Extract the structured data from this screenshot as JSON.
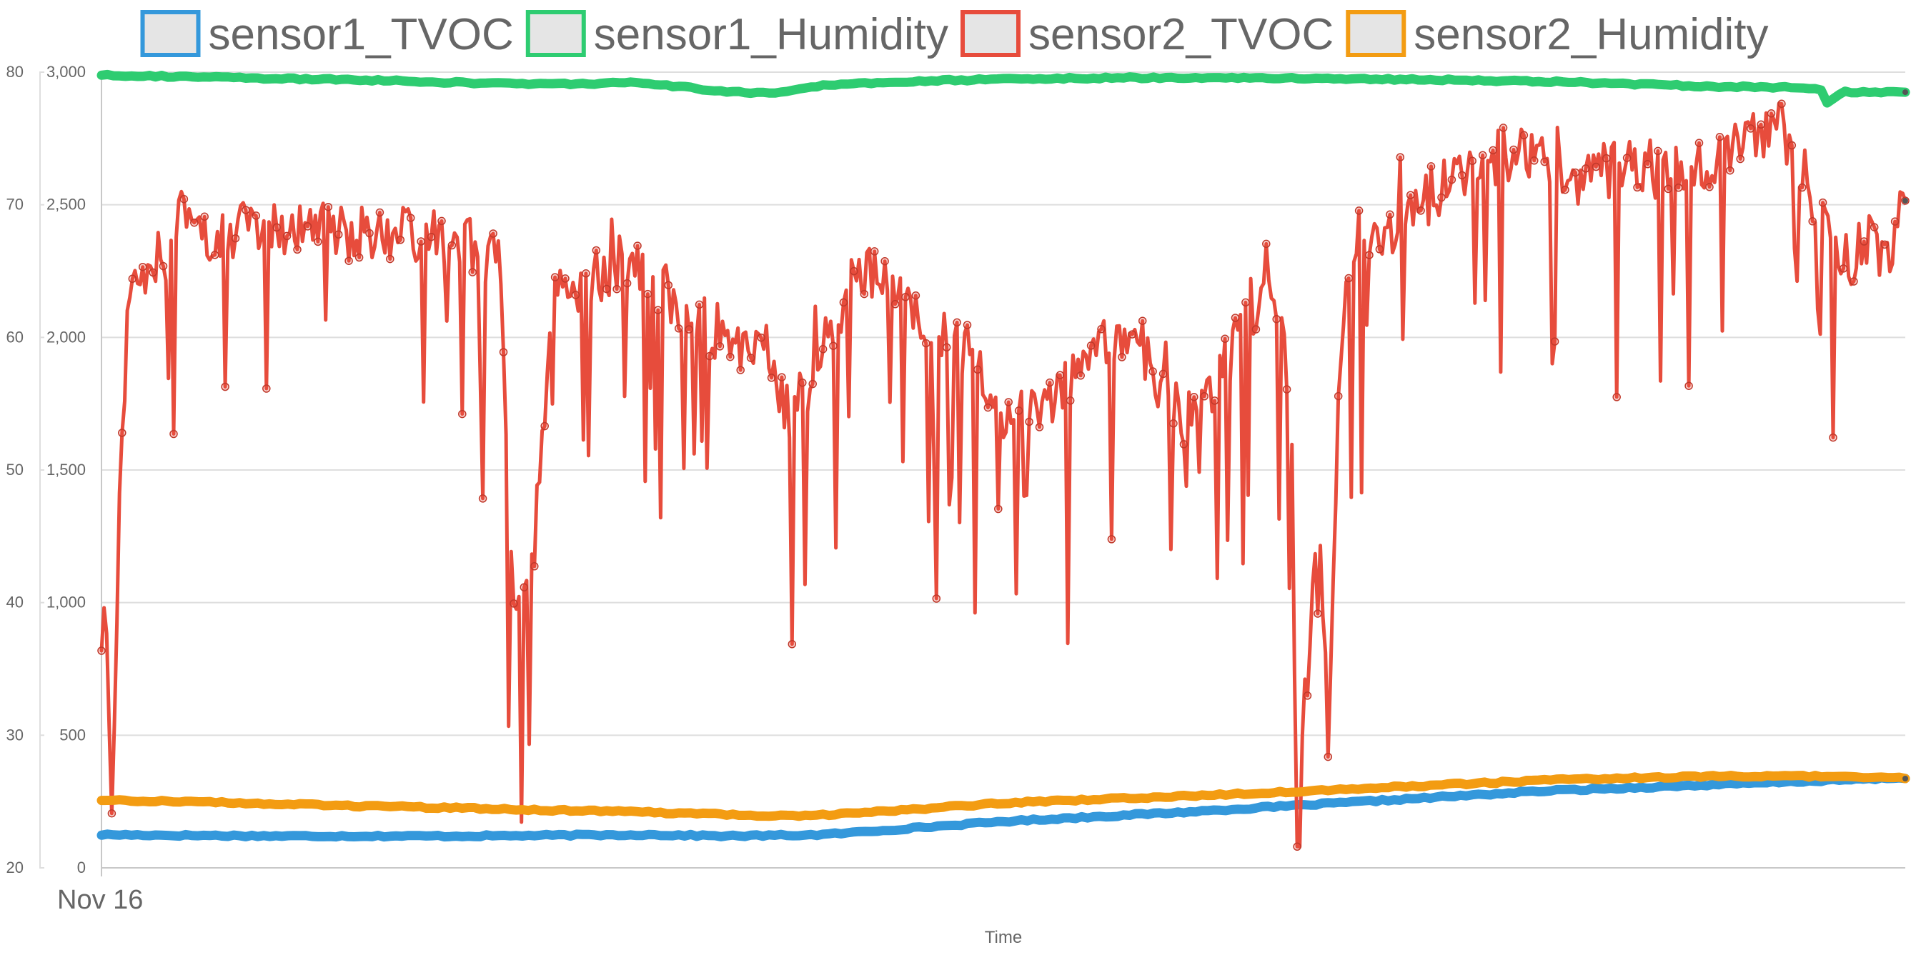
{
  "chart_data": {
    "type": "line",
    "xlabel": "Time",
    "x_ticks": [
      "Nov 16"
    ],
    "left_axis": {
      "ticks": [
        "20",
        "30",
        "40",
        "50",
        "60",
        "70",
        "80"
      ],
      "ylim": [
        20,
        80
      ]
    },
    "right_axis": {
      "ticks": [
        "0",
        "500",
        "1,000",
        "1,500",
        "2,000",
        "2,500",
        "3,000"
      ],
      "ylim": [
        0,
        3000
      ]
    },
    "grid": true,
    "legend_position": "top",
    "series": [
      {
        "name": "sensor1_TVOC",
        "axis": "left",
        "color": "#3498db",
        "control_points": [
          [
            0,
            22.5
          ],
          [
            0.1,
            22.4
          ],
          [
            0.2,
            22.4
          ],
          [
            0.3,
            22.5
          ],
          [
            0.35,
            22.4
          ],
          [
            0.4,
            22.5
          ],
          [
            0.45,
            23
          ],
          [
            0.5,
            23.5
          ],
          [
            0.6,
            24.2
          ],
          [
            0.7,
            25
          ],
          [
            0.8,
            25.8
          ],
          [
            0.9,
            26.3
          ],
          [
            1.0,
            26.8
          ]
        ]
      },
      {
        "name": "sensor1_Humidity",
        "axis": "left",
        "color": "#2ecc71",
        "control_points": [
          [
            0,
            79.8
          ],
          [
            0.03,
            79.7
          ],
          [
            0.1,
            79.5
          ],
          [
            0.15,
            79.4
          ],
          [
            0.2,
            79.2
          ],
          [
            0.25,
            79.1
          ],
          [
            0.3,
            79.2
          ],
          [
            0.34,
            78.6
          ],
          [
            0.37,
            78.4
          ],
          [
            0.4,
            79.0
          ],
          [
            0.45,
            79.3
          ],
          [
            0.5,
            79.5
          ],
          [
            0.6,
            79.6
          ],
          [
            0.7,
            79.5
          ],
          [
            0.8,
            79.3
          ],
          [
            0.9,
            78.9
          ],
          [
            0.953,
            78.8
          ],
          [
            0.957,
            77.6
          ],
          [
            0.965,
            78.5
          ],
          [
            1.0,
            78.5
          ]
        ]
      },
      {
        "name": "sensor2_TVOC",
        "axis": "right",
        "color": "#e74c3c",
        "control_points": [
          [
            0,
            800
          ],
          [
            0.003,
            950
          ],
          [
            0.006,
            100
          ],
          [
            0.01,
            1400
          ],
          [
            0.015,
            2200
          ],
          [
            0.03,
            2300
          ],
          [
            0.05,
            2350
          ],
          [
            0.08,
            2420
          ],
          [
            0.12,
            2420
          ],
          [
            0.15,
            2380
          ],
          [
            0.18,
            2380
          ],
          [
            0.2,
            2350
          ],
          [
            0.22,
            2300
          ],
          [
            0.23,
            900
          ],
          [
            0.24,
            1200
          ],
          [
            0.25,
            2150
          ],
          [
            0.27,
            2200
          ],
          [
            0.29,
            2300
          ],
          [
            0.31,
            2200
          ],
          [
            0.33,
            2050
          ],
          [
            0.35,
            2000
          ],
          [
            0.36,
            1900
          ],
          [
            0.37,
            1950
          ],
          [
            0.38,
            1700
          ],
          [
            0.39,
            1800
          ],
          [
            0.4,
            2000
          ],
          [
            0.42,
            2250
          ],
          [
            0.44,
            2200
          ],
          [
            0.46,
            2050
          ],
          [
            0.48,
            1950
          ],
          [
            0.5,
            1700
          ],
          [
            0.52,
            1750
          ],
          [
            0.54,
            1850
          ],
          [
            0.55,
            1950
          ],
          [
            0.56,
            2000
          ],
          [
            0.58,
            1900
          ],
          [
            0.6,
            1700
          ],
          [
            0.62,
            1850
          ],
          [
            0.63,
            2000
          ],
          [
            0.64,
            2100
          ],
          [
            0.645,
            2300
          ],
          [
            0.65,
            2150
          ],
          [
            0.655,
            2100
          ],
          [
            0.66,
            1600
          ],
          [
            0.665,
            400
          ],
          [
            0.67,
            900
          ],
          [
            0.675,
            1300
          ],
          [
            0.68,
            500
          ],
          [
            0.685,
            1600
          ],
          [
            0.69,
            2200
          ],
          [
            0.7,
            2300
          ],
          [
            0.72,
            2450
          ],
          [
            0.74,
            2550
          ],
          [
            0.76,
            2650
          ],
          [
            0.78,
            2700
          ],
          [
            0.8,
            2700
          ],
          [
            0.82,
            2600
          ],
          [
            0.85,
            2650
          ],
          [
            0.88,
            2600
          ],
          [
            0.9,
            2700
          ],
          [
            0.93,
            2800
          ],
          [
            0.94,
            2700
          ],
          [
            0.95,
            2500
          ],
          [
            0.96,
            2350
          ],
          [
            0.97,
            2300
          ],
          [
            0.98,
            2400
          ],
          [
            0.99,
            2250
          ],
          [
            1.0,
            2600
          ]
        ]
      },
      {
        "name": "sensor2_Humidity",
        "axis": "left",
        "color": "#f39c12",
        "control_points": [
          [
            0,
            25.1
          ],
          [
            0.05,
            25.0
          ],
          [
            0.1,
            24.8
          ],
          [
            0.2,
            24.5
          ],
          [
            0.3,
            24.2
          ],
          [
            0.35,
            24.0
          ],
          [
            0.37,
            23.9
          ],
          [
            0.4,
            24.0
          ],
          [
            0.45,
            24.4
          ],
          [
            0.5,
            24.9
          ],
          [
            0.6,
            25.4
          ],
          [
            0.7,
            26.0
          ],
          [
            0.75,
            26.3
          ],
          [
            0.8,
            26.6
          ],
          [
            0.85,
            26.8
          ],
          [
            0.9,
            26.9
          ],
          [
            0.95,
            26.9
          ],
          [
            1.0,
            26.8
          ]
        ]
      }
    ]
  }
}
